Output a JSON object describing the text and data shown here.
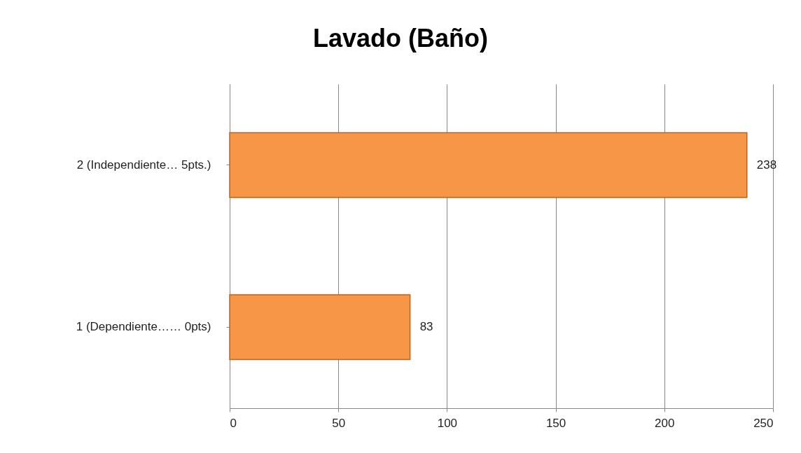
{
  "chart_data": {
    "type": "bar",
    "title": "Lavado (Baño)",
    "orientation": "horizontal",
    "categories": [
      "2  (Independiente… 5pts.)",
      "1  (Dependiente…… 0pts)"
    ],
    "values": [
      238,
      83
    ],
    "color": "#f79646",
    "xlim": [
      0,
      250
    ],
    "xticks": [
      0,
      50,
      100,
      150,
      200,
      250
    ],
    "grid": "x",
    "data_labels": true
  }
}
